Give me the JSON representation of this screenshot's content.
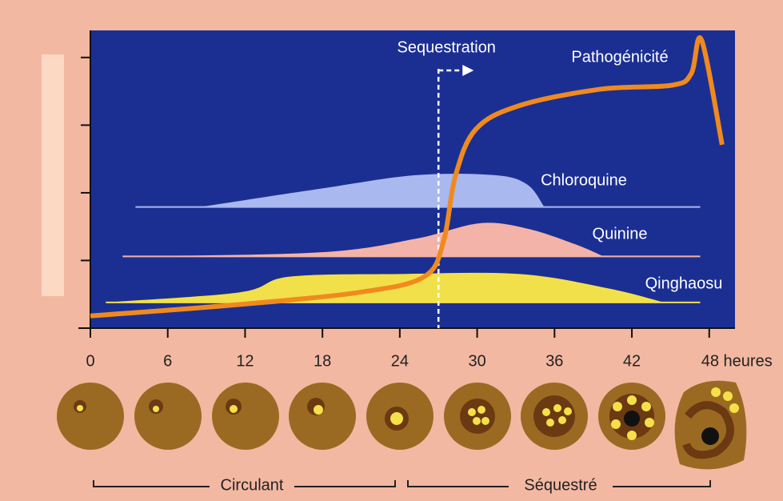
{
  "chart_data": {
    "type": "line",
    "xlim": [
      0,
      50
    ],
    "xticks": [
      0,
      6,
      12,
      18,
      24,
      30,
      36,
      42,
      {
        "value": 48,
        "label": "48 heures"
      }
    ],
    "ylim": [
      0,
      4.4
    ],
    "yticks": [
      0,
      1,
      2,
      3,
      4
    ],
    "sequestration": {
      "label": "Sequestration",
      "x": 27
    },
    "series": [
      {
        "name": "Pathogénicité",
        "type": "line",
        "color": "#f08a1e",
        "x": [
          0,
          11.6,
          20.9,
          25.9,
          27.4,
          28.3,
          29.9,
          33.3,
          39.5,
          45.1,
          46.6,
          47.4,
          49
        ],
        "values": [
          0.18,
          0.35,
          0.53,
          0.76,
          1.29,
          2.24,
          2.94,
          3.29,
          3.53,
          3.59,
          3.76,
          4.26,
          2.71
        ]
      },
      {
        "name": "Chloroquine",
        "type": "area",
        "color": "#a9b9ef",
        "x": [
          8.5,
          17.8,
          25.2,
          31.4,
          33.9,
          35.2
        ],
        "values": [
          1.79,
          2.06,
          2.26,
          2.26,
          2.12,
          1.79
        ],
        "baseline": 1.79,
        "baseline_x": [
          3.5,
          47.3
        ]
      },
      {
        "name": "Quinine",
        "type": "area",
        "color": "#f4b3a8",
        "x": [
          2.5,
          17.8,
          25.2,
          30.2,
          33.9,
          37.6,
          39.8
        ],
        "values": [
          1.06,
          1.12,
          1.32,
          1.55,
          1.47,
          1.24,
          1.06
        ],
        "baseline": 1.06,
        "baseline_x": [
          2.5,
          47.3
        ]
      },
      {
        "name": "Qinghaosu",
        "type": "area",
        "color": "#f2e04a",
        "x": [
          1.2,
          11.6,
          15.4,
          24.0,
          33.3,
          40.1,
          44.5
        ],
        "values": [
          0.38,
          0.53,
          0.76,
          0.8,
          0.8,
          0.59,
          0.38
        ],
        "baseline": 0.38,
        "baseline_x": [
          1.2,
          47.3
        ]
      }
    ],
    "stages": [
      "Circulant",
      "Séquestré"
    ]
  }
}
